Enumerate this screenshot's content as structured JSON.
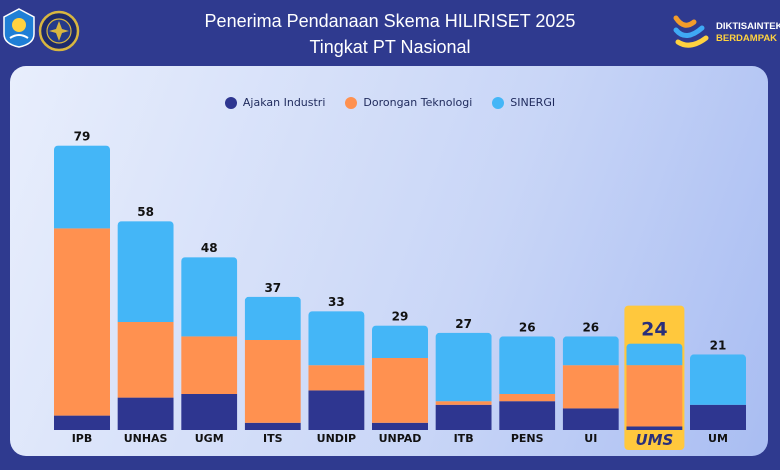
{
  "header": {
    "title_line1": "Penerima Pendanaan Skema HILIRISET 2025",
    "title_line2": "Tingkat PT Nasional",
    "brand_line1": "DIKTISAINTEK",
    "brand_line2": "BERDAMPAK"
  },
  "colors": {
    "ajakan": "#2e3690",
    "dorongan": "#ff9150",
    "sinergi": "#44b6f7",
    "highlight": "#ffc83d"
  },
  "chart_data": {
    "type": "bar",
    "stacked": true,
    "title": "Penerima Pendanaan Skema HILIRISET 2025 Tingkat PT Nasional",
    "xlabel": "",
    "ylabel": "",
    "categories": [
      "IPB",
      "UNHAS",
      "UGM",
      "ITS",
      "UNDIP",
      "UNPAD",
      "ITB",
      "PENS",
      "UI",
      "UMS",
      "UM"
    ],
    "totals": [
      79,
      58,
      48,
      37,
      33,
      29,
      27,
      26,
      26,
      24,
      21
    ],
    "series": [
      {
        "name": "Ajakan Industri",
        "values": [
          4,
          9,
          10,
          2,
          11,
          2,
          7,
          8,
          6,
          1,
          7
        ]
      },
      {
        "name": "Dorongan Teknologi",
        "values": [
          52,
          21,
          16,
          23,
          7,
          18,
          1,
          2,
          12,
          17,
          0
        ]
      },
      {
        "name": "SINERGI",
        "values": [
          23,
          28,
          22,
          12,
          15,
          9,
          19,
          16,
          8,
          6,
          14
        ]
      }
    ],
    "highlight": "UMS",
    "legend_position": "top-center"
  }
}
